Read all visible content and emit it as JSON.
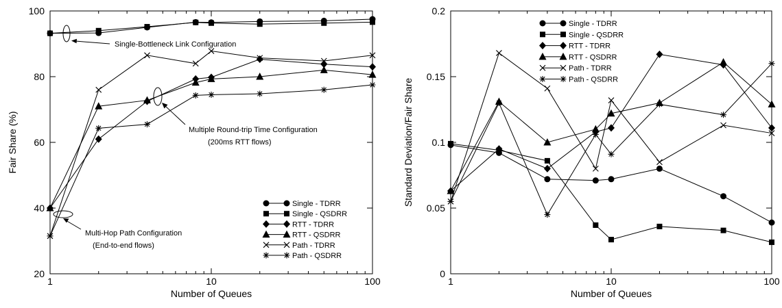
{
  "chart_data": [
    {
      "type": "line",
      "xscale": "log",
      "xlim": [
        1,
        100
      ],
      "ylim": [
        20,
        100
      ],
      "xticks": [
        "1",
        "10",
        "100"
      ],
      "yticks": [
        "20",
        "40",
        "60",
        "80",
        "100"
      ],
      "xlabel": "Number of Queues",
      "ylabel": "Fair Share (%)",
      "legend_position": "bottom-right",
      "x": [
        1,
        2,
        4,
        8,
        10,
        20,
        50,
        100
      ],
      "series": [
        {
          "name": "Single - TDRR",
          "marker": "circle",
          "values": [
            93.2,
            93.3,
            95.0,
            96.6,
            96.5,
            96.8,
            97.0,
            97.5
          ]
        },
        {
          "name": "Single - QSDRR",
          "marker": "square",
          "values": [
            93.2,
            94.0,
            95.2,
            96.5,
            96.3,
            96.0,
            96.3,
            96.6
          ]
        },
        {
          "name": "RTT - TDRR",
          "marker": "diamond",
          "values": [
            40.0,
            61.0,
            72.5,
            79.3,
            79.8,
            85.3,
            83.8,
            83.0
          ]
        },
        {
          "name": "RTT - QSDRR",
          "marker": "triangle",
          "values": [
            40.0,
            71.0,
            72.8,
            78.2,
            79.3,
            80.0,
            82.0,
            80.6
          ]
        },
        {
          "name": "Path - TDRR",
          "marker": "x",
          "values": [
            31.5,
            76.0,
            86.5,
            84.0,
            87.8,
            85.7,
            84.8,
            86.5
          ]
        },
        {
          "name": "Path - QSDRR",
          "marker": "asterisk",
          "values": [
            31.5,
            64.3,
            65.5,
            74.3,
            74.5,
            74.8,
            76.0,
            77.5
          ]
        }
      ],
      "annotations": [
        {
          "lines": [
            "Single-Bottleneck Link Configuration"
          ]
        },
        {
          "lines": [
            "Multiple Round-trip Time Configuration",
            "(200ms RTT flows)"
          ]
        },
        {
          "lines": [
            "Multi-Hop Path Configuration",
            "(End-to-end flows)"
          ]
        }
      ]
    },
    {
      "type": "line",
      "xscale": "log",
      "xlim": [
        1,
        100
      ],
      "ylim": [
        0,
        0.2
      ],
      "xticks": [
        "1",
        "10",
        "100"
      ],
      "yticks": [
        "0",
        "0.05",
        "0.1",
        "0.15",
        "0.2"
      ],
      "xlabel": "Number of Queues",
      "ylabel": "Standard Deviation/Fair Share",
      "legend_position": "top-left",
      "x": [
        1,
        2,
        4,
        8,
        10,
        20,
        50,
        100
      ],
      "series": [
        {
          "name": "Single - TDRR",
          "marker": "circle",
          "values": [
            0.098,
            0.092,
            0.072,
            0.071,
            0.072,
            0.08,
            0.059,
            0.039
          ]
        },
        {
          "name": "Single - QSDRR",
          "marker": "square",
          "values": [
            0.099,
            0.094,
            0.086,
            0.037,
            0.026,
            0.036,
            0.033,
            0.024
          ]
        },
        {
          "name": "RTT - TDRR",
          "marker": "diamond",
          "values": [
            0.063,
            0.095,
            0.08,
            0.108,
            0.111,
            0.167,
            0.159,
            0.111
          ]
        },
        {
          "name": "RTT - QSDRR",
          "marker": "triangle",
          "values": [
            0.063,
            0.131,
            0.1,
            0.11,
            0.122,
            0.13,
            0.161,
            0.129
          ]
        },
        {
          "name": "Path - TDRR",
          "marker": "x",
          "values": [
            0.055,
            0.168,
            0.141,
            0.08,
            0.132,
            0.085,
            0.113,
            0.107
          ]
        },
        {
          "name": "Path - QSDRR",
          "marker": "asterisk",
          "values": [
            0.055,
            0.13,
            0.045,
            0.106,
            0.091,
            0.129,
            0.121,
            0.16
          ]
        }
      ]
    }
  ]
}
